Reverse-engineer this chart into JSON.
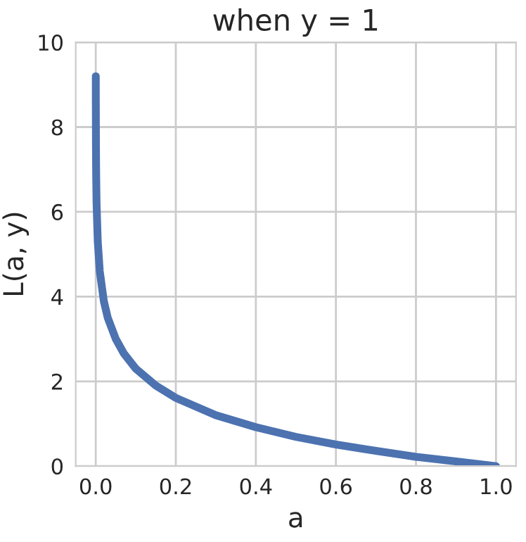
{
  "chart_data": {
    "type": "line",
    "title": "when y = 1",
    "xlabel": "a",
    "ylabel": "L(a, y)",
    "x": [
      0.0001,
      0.0002,
      0.0005,
      0.001,
      0.002,
      0.005,
      0.01,
      0.02,
      0.03,
      0.05,
      0.07,
      0.1,
      0.15,
      0.2,
      0.3,
      0.4,
      0.5,
      0.6,
      0.7,
      0.8,
      0.9,
      1.0
    ],
    "series": [
      {
        "color": "#4c72b0",
        "values": [
          9.2,
          8.5,
          7.6,
          6.9,
          6.2,
          5.3,
          4.6,
          3.9,
          3.5,
          3.0,
          2.66,
          2.3,
          1.9,
          1.61,
          1.2,
          0.92,
          0.69,
          0.51,
          0.36,
          0.22,
          0.11,
          0.0
        ]
      }
    ],
    "xlim": [
      -0.05,
      1.05
    ],
    "xticks": [
      {
        "value": 0,
        "label": "0.0"
      },
      0.2,
      0.4,
      0.6,
      0.8,
      {
        "value": 1,
        "label": "1.0"
      }
    ],
    "ylim": [
      0,
      10
    ],
    "yticks": [
      0,
      2,
      4,
      6,
      8,
      10
    ],
    "grid": true,
    "marker": "none",
    "line_style": "solid",
    "legend": false
  }
}
